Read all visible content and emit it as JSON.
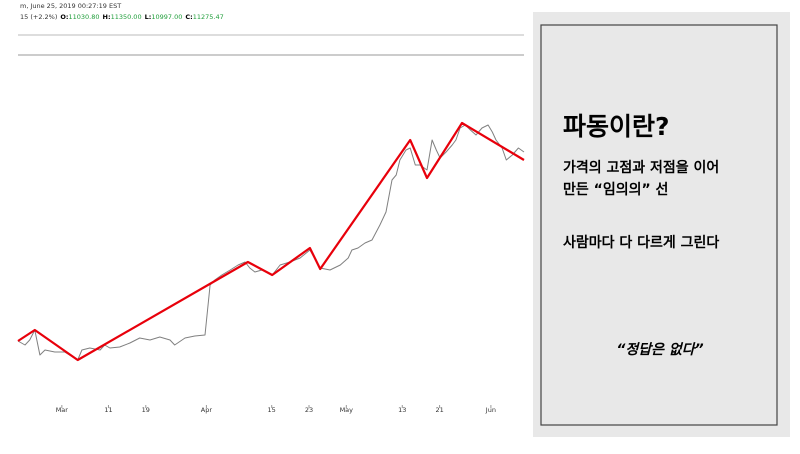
{
  "chart_data": {
    "type": "line",
    "header": {
      "line1": "m, June 25, 2019 00:27:19 EST",
      "change": "15 (+2.2%)",
      "ohlc": [
        {
          "key": "O:",
          "val": "11030.80"
        },
        {
          "key": "H:",
          "val": "11350.00"
        },
        {
          "key": "L:",
          "val": "10997.00"
        },
        {
          "key": "C:",
          "val": "11275.47"
        }
      ]
    },
    "x": [
      -9.4,
      -7.9,
      -6.9,
      -5.8,
      -4.7,
      -3.6,
      -1.5,
      0.6,
      3.4,
      4.3,
      6.0,
      8.2,
      9.2,
      10.3,
      12.4,
      14.6,
      16.7,
      18.9,
      21.0,
      23.2,
      24.2,
      26.4,
      28.5,
      30.7,
      31.8,
      32.8,
      34.3,
      36.1,
      37.8,
      39.3,
      40.3,
      41.4,
      42.9,
      45.1,
      46.8,
      48.9,
      51.1,
      53.2,
      55.4,
      57.5,
      59.7,
      61.4,
      62.2,
      63.5,
      65.0,
      66.5,
      68.2,
      69.5,
      70.8,
      71.7,
      72.5,
      73.8,
      74.7,
      75.8,
      76.8,
      78.3,
      79.4,
      80.3,
      81.1,
      82.4,
      83.7,
      84.5,
      85.4,
      86.5,
      87.6,
      88.8,
      90.1,
      91.4,
      92.3,
      93.1,
      94.4,
      95.3,
      96.6,
      97.9,
      99.1
    ],
    "series": [
      {
        "color": "#808080",
        "width": 1,
        "values": [
          4520,
          4400,
          4550,
          4850,
          4100,
          4250,
          4190,
          4190,
          3950,
          4250,
          4310,
          4250,
          4400,
          4310,
          4340,
          4460,
          4610,
          4550,
          4640,
          4550,
          4400,
          4610,
          4670,
          4700,
          6200,
          6350,
          6500,
          6650,
          6800,
          6890,
          6710,
          6590,
          6650,
          6500,
          6800,
          6890,
          7010,
          7250,
          6710,
          6650,
          6800,
          7010,
          7250,
          7310,
          7460,
          7550,
          8000,
          8390,
          9350,
          9500,
          9950,
          10250,
          10310,
          9800,
          9800,
          9650,
          10550,
          10250,
          10010,
          10190,
          10400,
          10550,
          10910,
          11000,
          10850,
          10700,
          10910,
          11000,
          10790,
          10550,
          10310,
          9950,
          10100,
          10310,
          10190
        ]
      },
      {
        "color": "#e8000b",
        "width": 2.2,
        "x": [
          -9.4,
          -5.8,
          3.4,
          39.9,
          45.1,
          53.2,
          55.4,
          74.7,
          78.3,
          85.8,
          99.1
        ],
        "values": [
          4520,
          4850,
          3950,
          6890,
          6500,
          7310,
          6680,
          10550,
          9410,
          11060,
          9950
        ]
      }
    ],
    "xlim": [
      -9.4,
      99.1
    ],
    "ylim": [
      2600,
      13700
    ],
    "xticks": [
      {
        "value": 0,
        "label": "Mar"
      },
      {
        "value": 10,
        "label": "11"
      },
      {
        "value": 18,
        "label": "19"
      },
      {
        "value": 31,
        "label": "Apr"
      },
      {
        "value": 45,
        "label": "15"
      },
      {
        "value": 53,
        "label": "23"
      },
      {
        "value": 61,
        "label": "May"
      },
      {
        "value": 73,
        "label": "13"
      },
      {
        "value": 81,
        "label": "21"
      },
      {
        "value": 92,
        "label": "Jun"
      }
    ],
    "grid": false
  },
  "panel": {
    "title": "파동이란?",
    "line1": "가격의 고점과 저점을 이어",
    "line2": "만든 “임의의” 선",
    "line3": "사람마다 다 다르게 그린다",
    "quote": "“정답은 없다”"
  }
}
